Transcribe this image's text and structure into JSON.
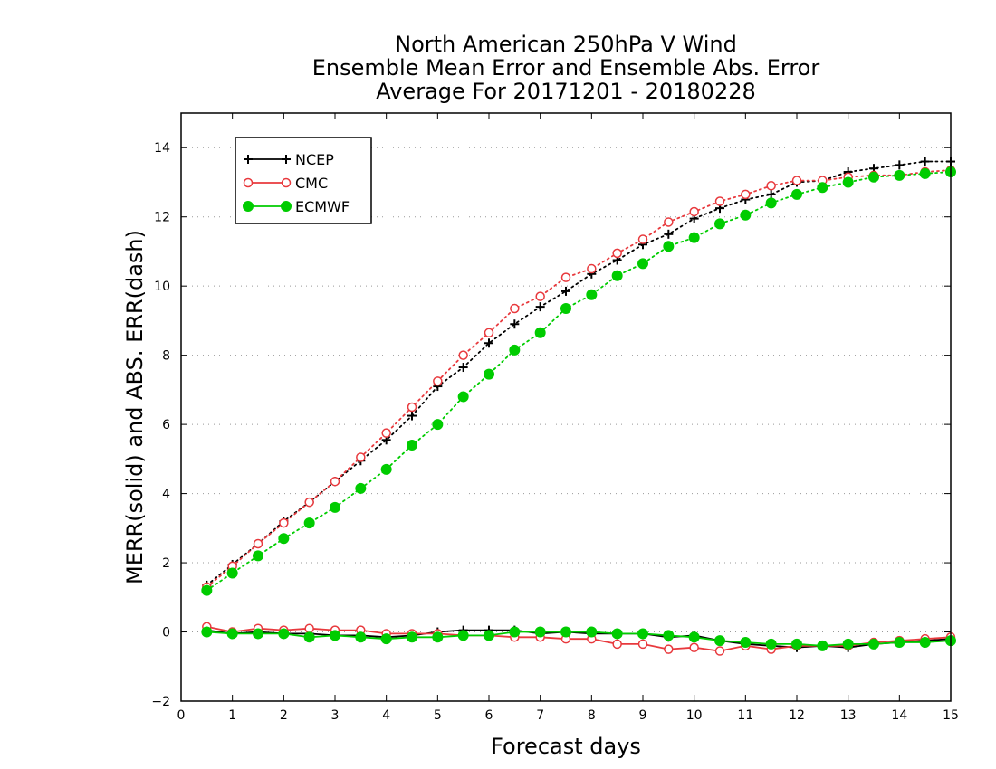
{
  "chart_data": {
    "type": "line",
    "title": [
      "North American 250hPa V Wind",
      "Ensemble Mean Error and Ensemble Abs. Error",
      "Average For 20171201 - 20180228"
    ],
    "xlabel": "Forecast days",
    "ylabel": "MERR(solid) and ABS. ERR(dash)",
    "xlim": [
      0,
      15
    ],
    "ylim": [
      -2,
      15
    ],
    "xticks": [
      0,
      1,
      2,
      3,
      4,
      5,
      6,
      7,
      8,
      9,
      10,
      11,
      12,
      13,
      14,
      15
    ],
    "yticks": [
      -2,
      0,
      2,
      4,
      6,
      8,
      10,
      12,
      14
    ],
    "grid": "dotted horizontal",
    "legend_position": "top-left",
    "x": [
      0.5,
      1,
      1.5,
      2,
      2.5,
      3,
      3.5,
      4,
      4.5,
      5,
      5.5,
      6,
      6.5,
      7,
      7.5,
      8,
      8.5,
      9,
      9.5,
      10,
      10.5,
      11,
      11.5,
      12,
      12.5,
      13,
      13.5,
      14,
      14.5,
      15
    ],
    "series": [
      {
        "name": "NCEP",
        "color": "#000000",
        "marker": "plus",
        "abs_err": [
          1.35,
          1.95,
          2.55,
          3.2,
          3.75,
          4.35,
          4.95,
          5.55,
          6.25,
          7.1,
          7.65,
          8.35,
          8.9,
          9.4,
          9.85,
          10.35,
          10.75,
          11.2,
          11.5,
          11.95,
          12.25,
          12.5,
          12.65,
          13.0,
          13.05,
          13.3,
          13.4,
          13.5,
          13.6,
          13.6
        ],
        "mean_err": [
          0.05,
          -0.05,
          0.0,
          -0.05,
          -0.05,
          -0.1,
          -0.1,
          -0.15,
          -0.1,
          0.0,
          0.05,
          0.05,
          0.05,
          -0.05,
          0.0,
          -0.05,
          -0.05,
          -0.05,
          -0.15,
          -0.1,
          -0.25,
          -0.35,
          -0.4,
          -0.45,
          -0.4,
          -0.45,
          -0.35,
          -0.3,
          -0.25,
          -0.2
        ]
      },
      {
        "name": "CMC",
        "color": "#e8393d",
        "marker": "open-circle",
        "abs_err": [
          1.3,
          1.9,
          2.55,
          3.15,
          3.75,
          4.35,
          5.05,
          5.75,
          6.5,
          7.25,
          8.0,
          8.65,
          9.35,
          9.7,
          10.25,
          10.5,
          10.95,
          11.35,
          11.85,
          12.15,
          12.45,
          12.65,
          12.9,
          13.05,
          13.05,
          13.15,
          13.2,
          13.2,
          13.3,
          13.35
        ],
        "mean_err": [
          0.15,
          0.0,
          0.1,
          0.05,
          0.1,
          0.05,
          0.05,
          -0.05,
          -0.05,
          -0.05,
          -0.1,
          -0.1,
          -0.15,
          -0.15,
          -0.2,
          -0.2,
          -0.35,
          -0.35,
          -0.5,
          -0.45,
          -0.55,
          -0.4,
          -0.5,
          -0.4,
          -0.4,
          -0.4,
          -0.3,
          -0.25,
          -0.2,
          -0.15
        ]
      },
      {
        "name": "ECMWF",
        "color": "#00cc00",
        "marker": "filled-circle",
        "abs_err": [
          1.2,
          1.7,
          2.2,
          2.7,
          3.15,
          3.6,
          4.15,
          4.7,
          5.4,
          6.0,
          6.8,
          7.45,
          8.15,
          8.65,
          9.35,
          9.75,
          10.3,
          10.65,
          11.15,
          11.4,
          11.8,
          12.05,
          12.4,
          12.65,
          12.85,
          13.0,
          13.15,
          13.2,
          13.25,
          13.3
        ],
        "mean_err": [
          0.0,
          -0.05,
          -0.05,
          -0.05,
          -0.15,
          -0.1,
          -0.15,
          -0.2,
          -0.15,
          -0.15,
          -0.1,
          -0.1,
          0.0,
          0.0,
          0.0,
          0.0,
          -0.05,
          -0.05,
          -0.1,
          -0.15,
          -0.25,
          -0.3,
          -0.35,
          -0.35,
          -0.4,
          -0.35,
          -0.35,
          -0.3,
          -0.3,
          -0.25
        ]
      }
    ]
  }
}
